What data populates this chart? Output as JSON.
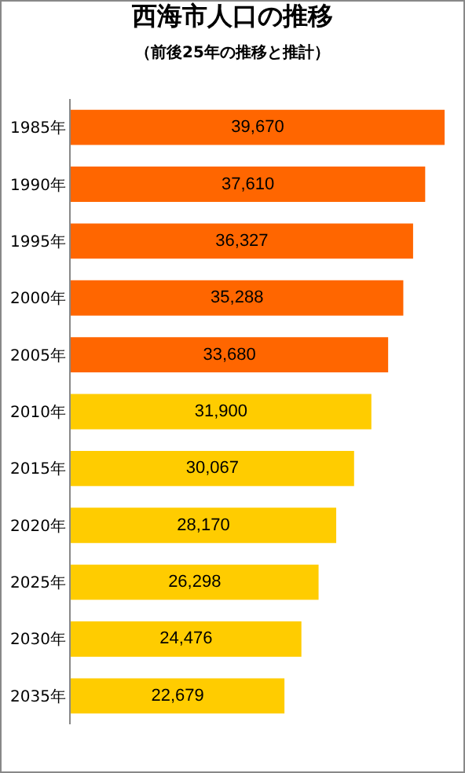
{
  "chart_data": {
    "type": "bar",
    "orientation": "horizontal",
    "title": "西海市人口の推移",
    "subtitle": "（前後25年の推移と推計）",
    "categories": [
      "1985年",
      "1990年",
      "1995年",
      "2000年",
      "2005年",
      "2010年",
      "2015年",
      "2020年",
      "2025年",
      "2030年",
      "2035年"
    ],
    "values": [
      39670,
      37610,
      36327,
      35288,
      33680,
      31900,
      30067,
      28170,
      26298,
      24476,
      22679
    ],
    "value_labels": [
      "39,670",
      "37,610",
      "36,327",
      "35,288",
      "33,680",
      "31,900",
      "30,067",
      "28,170",
      "26,298",
      "24,476",
      "22,679"
    ],
    "colors": [
      "#ff6600",
      "#ff6600",
      "#ff6600",
      "#ff6600",
      "#ff6600",
      "#ffcc00",
      "#ffcc00",
      "#ffcc00",
      "#ffcc00",
      "#ffcc00",
      "#ffcc00"
    ],
    "xlim": [
      0,
      40000
    ],
    "tick_labels": "y",
    "grid": false,
    "legend": false
  }
}
